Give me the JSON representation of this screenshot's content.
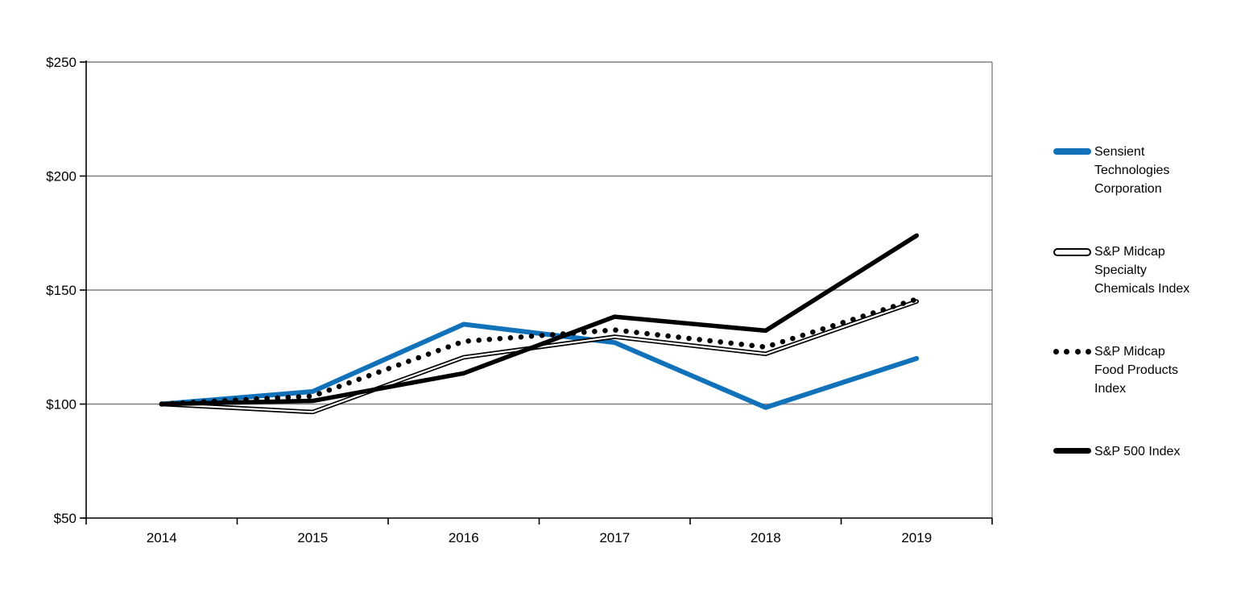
{
  "chart_data": {
    "type": "line",
    "title": "",
    "xlabel": "",
    "ylabel": "",
    "x_categories": [
      "2014",
      "2015",
      "2016",
      "2017",
      "2018",
      "2019"
    ],
    "y_ticks": [
      50,
      100,
      150,
      200,
      250
    ],
    "y_tick_labels": [
      "$50",
      "$100",
      "$150",
      "$200",
      "$250"
    ],
    "ylim": [
      50,
      250
    ],
    "grid": true,
    "legend_position": "right",
    "series": [
      {
        "name": "Sensient Technologies Corporation",
        "values": [
          100,
          105.5,
          135,
          127,
          98.5,
          120
        ],
        "color": "#1272B9",
        "line_style": "solid",
        "width": 6
      },
      {
        "name": "S&P Midcap Specialty Chemicals Index",
        "values": [
          100,
          96.5,
          120.5,
          129.5,
          122,
          145
        ],
        "color": "#000000",
        "line_style": "double",
        "width": 5.5
      },
      {
        "name": "S&P Midcap Food Products Index",
        "values": [
          100,
          103.5,
          127.5,
          132.5,
          125,
          146
        ],
        "color": "#000000",
        "line_style": "dotted",
        "width": 6.5
      },
      {
        "name": "S&P 500 Index",
        "values": [
          100,
          101.4,
          113.5,
          138.3,
          132.2,
          173.9
        ],
        "color": "#000000",
        "line_style": "solid",
        "width": 5.5
      }
    ],
    "colors": {
      "accent_blue": "#1272B9",
      "line_black": "#000000",
      "gridline_gray": "#808080",
      "background": "#FFFFFF"
    }
  }
}
